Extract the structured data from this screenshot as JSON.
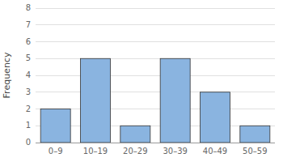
{
  "chart_data": {
    "type": "bar",
    "categories": [
      "0–9",
      "10–19",
      "20–29",
      "30–39",
      "40–49",
      "50–59"
    ],
    "values": [
      2,
      5,
      1,
      5,
      3,
      1
    ],
    "color": "#8ab4e0",
    "ylabel": "Frequency",
    "ylim": [
      0,
      8
    ],
    "yticks": [
      0,
      1,
      2,
      3,
      4,
      5,
      6,
      7,
      8
    ],
    "grid": true
  }
}
